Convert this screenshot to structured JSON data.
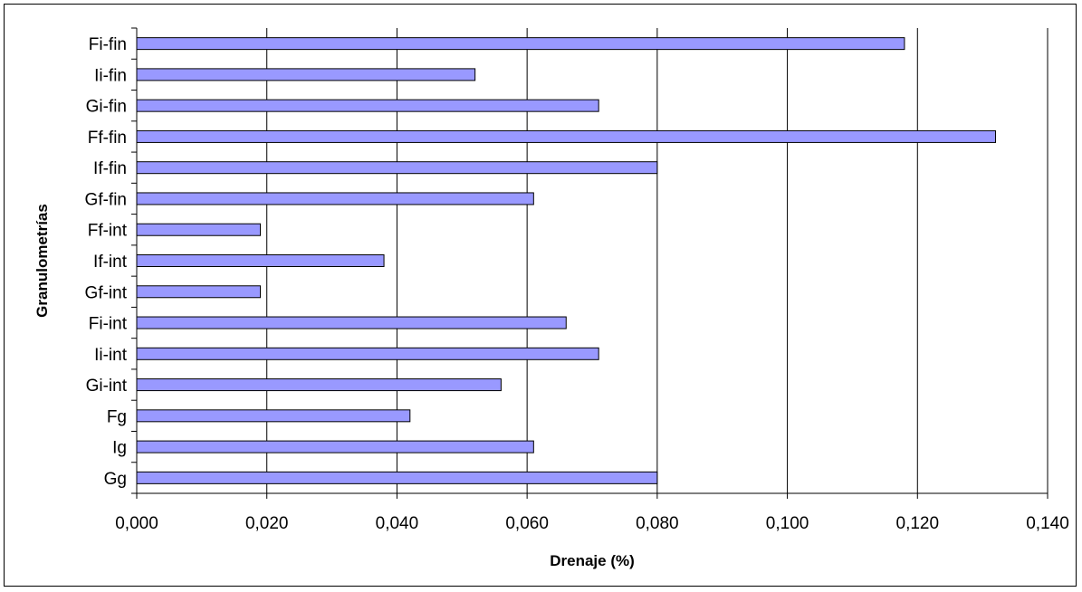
{
  "chart_data": {
    "type": "bar",
    "orientation": "horizontal",
    "categories": [
      "Gg",
      "Ig",
      "Fg",
      "Gi-int",
      "Ii-int",
      "Fi-int",
      "Gf-int",
      "If-int",
      "Ff-int",
      "Gf-fin",
      "If-fin",
      "Ff-fin",
      "Gi-fin",
      "Ii-fin",
      "Fi-fin"
    ],
    "values": [
      0.08,
      0.061,
      0.042,
      0.056,
      0.071,
      0.066,
      0.019,
      0.038,
      0.019,
      0.061,
      0.08,
      0.132,
      0.071,
      0.052,
      0.118
    ],
    "xlabel": "Drenaje (%)",
    "ylabel": "Granulometrías",
    "xlim": [
      0,
      0.14
    ],
    "xticks": [
      "0,000",
      "0,020",
      "0,040",
      "0,060",
      "0,080",
      "0,100",
      "0,120",
      "0,140"
    ],
    "grid": "vertical",
    "bar_color": "#9999ff",
    "bar_edge_color": "#000000",
    "legend": "none"
  }
}
